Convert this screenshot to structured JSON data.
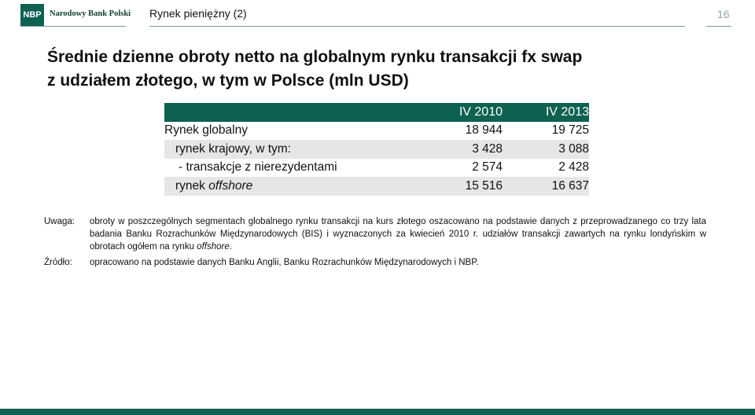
{
  "header": {
    "logo_abbr": "NBP",
    "logo_name": "Narodowy Bank Polski",
    "title": "Rynek pieniężny (2)",
    "page_number": "16"
  },
  "main": {
    "title_line1": "Średnie dzienne obroty netto na globalnym rynku transakcji fx swap",
    "title_line2": "z udziałem złotego, w tym w Polsce (mln USD)"
  },
  "table": {
    "columns": [
      "IV 2010",
      "IV 2013"
    ],
    "rows": [
      {
        "label": "Rynek globalny",
        "v2010": "18 944",
        "v2013": "19 725"
      },
      {
        "label": "rynek krajowy, w tym:",
        "v2010": "3 428",
        "v2013": "3 088"
      },
      {
        "label": "- transakcje z nierezydentami",
        "v2010": "2 574",
        "v2013": "2 428"
      },
      {
        "label_prefix": "rynek ",
        "label_italic": "offshore",
        "v2010": "15 516",
        "v2013": "16 637"
      }
    ]
  },
  "notes": {
    "note_key": "Uwaga:",
    "note_text_part1": "obroty w poszczególnych segmentach globalnego rynku transakcji na kurs złotego oszacowano na podstawie danych z przeprowadzanego co trzy lata badania Banku Rozrachunków Międzynarodowych (BIS) i wyznaczonych za kwiecień 2010 r. udziałów transakcji zawartych na rynku londyńskim w obrotach ogółem na rynku ",
    "note_text_italic": "offshore",
    "note_text_end": ".",
    "source_key": "Źródło:",
    "source_text": "opracowano na podstawie danych Banku Anglii, Banku Rozrachunków Międzynarodowych i NBP."
  },
  "colors": {
    "brand_green": "#0d6150",
    "row_shade": "#e6e6e6"
  }
}
